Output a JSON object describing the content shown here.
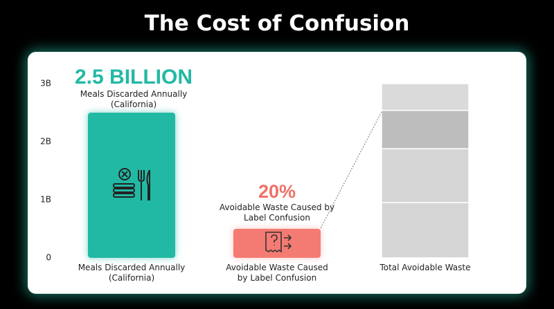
{
  "chart_data": {
    "type": "bar",
    "title": "The Cost of Confusion",
    "categories": [
      "Meals Discarded Annually (California)",
      "Avoidable Waste Caused by Label Confusion",
      "Total Avoidable Waste"
    ],
    "values": [
      2.5,
      0.5,
      3
    ],
    "colors": [
      "#22b9a4",
      "#f47b73",
      "#d5d5d5"
    ],
    "segments": [
      0.95,
      0.93,
      0.66,
      0.46
    ],
    "segment_colors": [
      "#d5d5d5",
      "#d5d5d5",
      "#bdbdbd",
      "#dadada"
    ],
    "ylim": [
      0,
      3
    ],
    "yticks": [
      0,
      {
        "value": 1,
        "label": "1B"
      },
      {
        "value": 2,
        "label": "2B"
      },
      {
        "value": 3,
        "label": "3B"
      }
    ],
    "annotations": [
      {
        "text": "2.5 BILLION",
        "subtext": "Meals Discarded Annually (California)",
        "color": "#22b9a4"
      },
      {
        "text": "20%",
        "subtext": "Avoidable Waste Caused by Label Confusion",
        "color": "#f07066"
      }
    ]
  }
}
